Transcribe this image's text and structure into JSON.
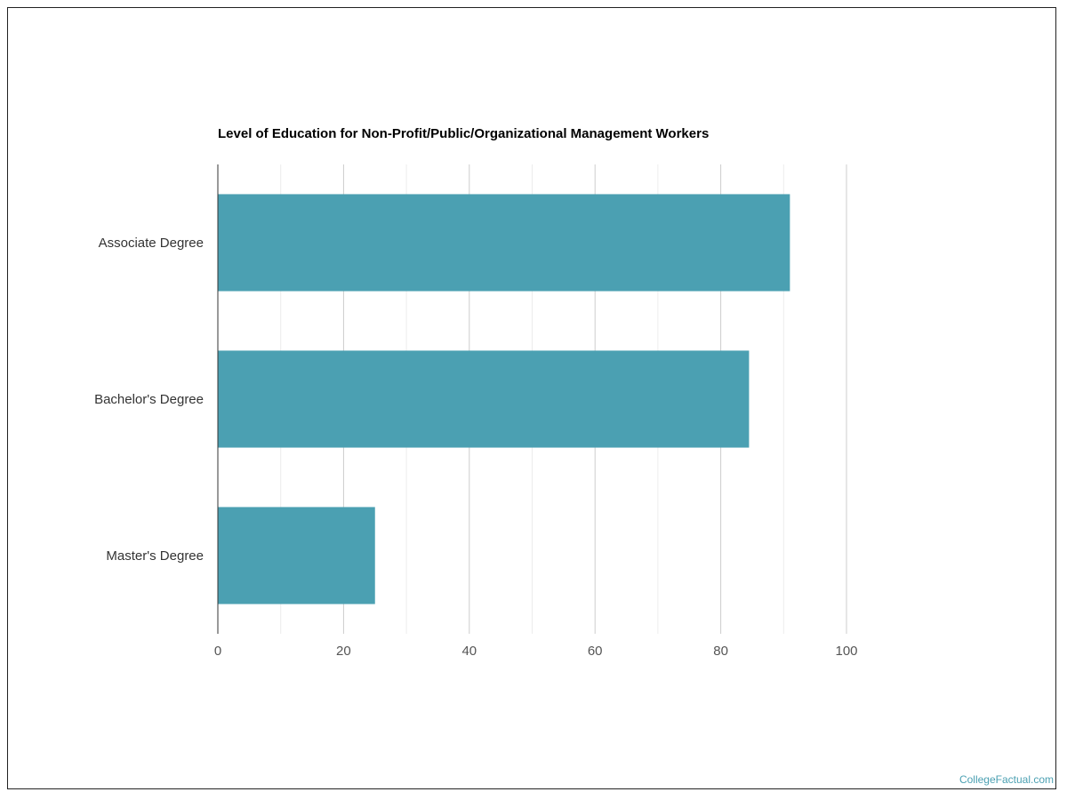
{
  "chart_data": {
    "type": "bar",
    "orientation": "horizontal",
    "title": "Level of Education for Non-Profit/Public/Organizational Management Workers",
    "categories": [
      "Associate Degree",
      "Bachelor's Degree",
      "Master's Degree"
    ],
    "values": [
      91,
      84.5,
      25
    ],
    "xlim": [
      0,
      100
    ],
    "xticks": [
      0,
      20,
      40,
      60,
      80,
      100
    ],
    "grid": true,
    "bar_color": "#4ba0b2"
  },
  "watermark": "CollegeFactual.com"
}
